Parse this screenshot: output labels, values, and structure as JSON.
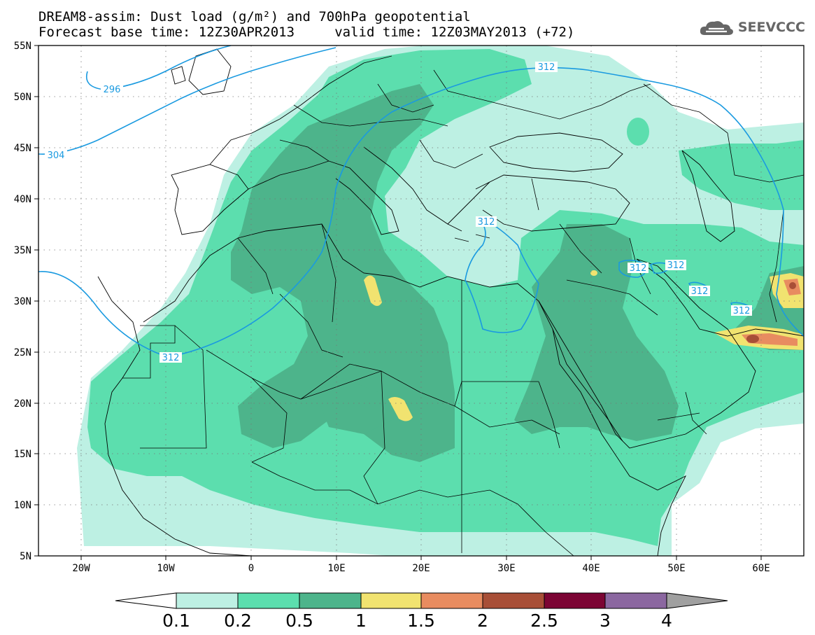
{
  "header": {
    "title_line1": "DREAM8-assim: Dust load (g/m²) and 700hPa geopotential",
    "title_line2": "Forecast base time: 12Z30APR2013     valid time: 12Z03MAY2013 (+72)",
    "logo_text": "SEEVCCC",
    "logo_icon": "cloud-logo-icon"
  },
  "map": {
    "lon_range": [
      -25,
      65
    ],
    "lat_range": [
      5,
      55
    ],
    "lat_labels": [
      "55N",
      "50N",
      "45N",
      "40N",
      "35N",
      "30N",
      "25N",
      "20N",
      "15N",
      "10N",
      "5N"
    ],
    "lon_labels": [
      "20W",
      "10W",
      "0",
      "10E",
      "20E",
      "30E",
      "40E",
      "50E",
      "60E"
    ],
    "contour_labels": [
      "296",
      "304",
      "312",
      "312",
      "312",
      "312",
      "312",
      "312",
      "312"
    ],
    "contour_color": "#1a9ae0",
    "land_color": "#ffffff",
    "border_color": "#000000"
  },
  "colorbar": {
    "levels": [
      "0.1",
      "0.2",
      "0.5",
      "1",
      "1.5",
      "2",
      "2.5",
      "3",
      "4"
    ],
    "colors": [
      "#bdf0e3",
      "#5cdeae",
      "#4db48b",
      "#f1e370",
      "#e88c60",
      "#a84f37",
      "#7c0534",
      "#8b67a0",
      "#a0a0a0"
    ],
    "under_color": "#ffffff",
    "over_color": "#a0a0a0"
  }
}
